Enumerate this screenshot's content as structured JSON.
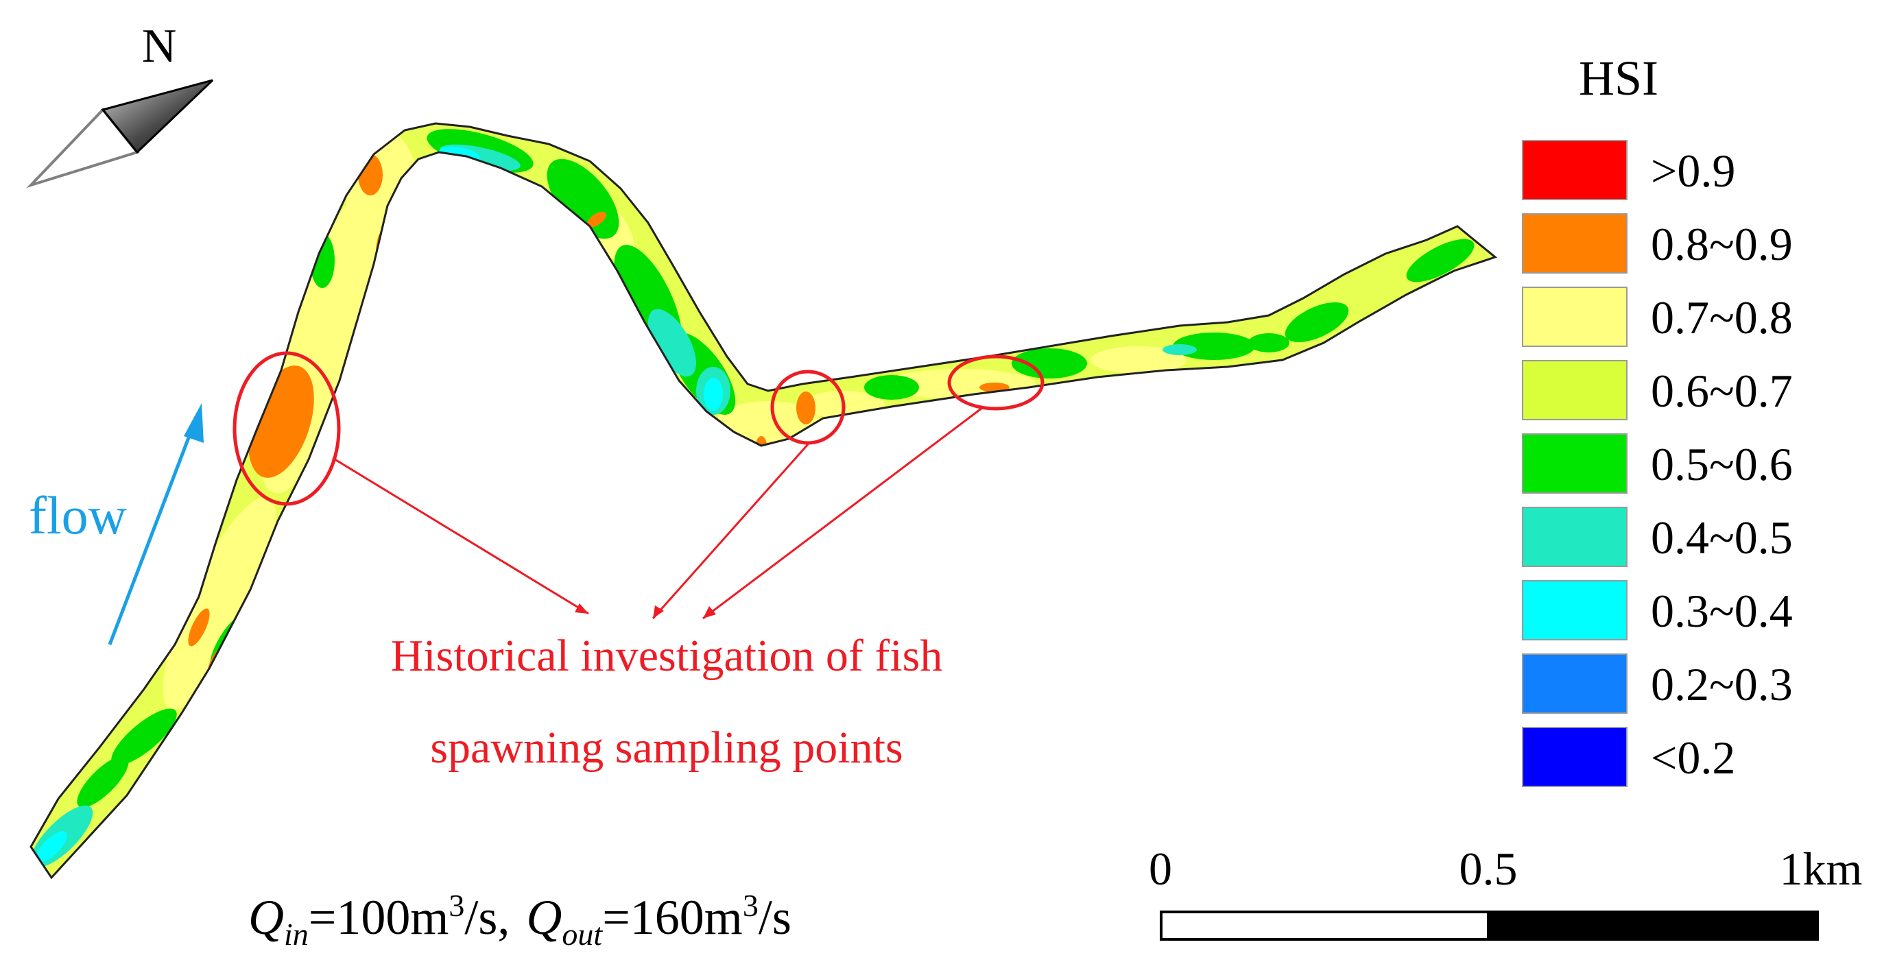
{
  "north_arrow": {
    "label": "N"
  },
  "flow": {
    "label": "flow",
    "color": "#1aa0e6"
  },
  "annotation": {
    "line1": "Historical investigation of fish",
    "line2": "spawning sampling points",
    "color": "#ee1c24"
  },
  "formula": {
    "q_in_symbol": "Q",
    "q_in_sub": "in",
    "q_in_value": "=100m",
    "q_in_sup": "3",
    "q_in_unit": "/s,",
    "q_out_symbol": "Q",
    "q_out_sub": "out",
    "q_out_value": "=160m",
    "q_out_sup": "3",
    "q_out_unit": "/s"
  },
  "legend": {
    "title": "HSI",
    "items": [
      {
        "label": ">0.9",
        "color": "#ff0000"
      },
      {
        "label": "0.8~0.9",
        "color": "#ff8000"
      },
      {
        "label": "0.7~0.8",
        "color": "#ffff80"
      },
      {
        "label": "0.6~0.7",
        "color": "#d8ff3a"
      },
      {
        "label": "0.5~0.6",
        "color": "#00e600"
      },
      {
        "label": "0.4~0.5",
        "color": "#20e8c0"
      },
      {
        "label": "0.3~0.4",
        "color": "#00ffff"
      },
      {
        "label": "0.2~0.3",
        "color": "#1080ff"
      },
      {
        "label": "<0.2",
        "color": "#0000ff"
      }
    ]
  },
  "scale_bar": {
    "tick_0": "0",
    "tick_mid": "0.5",
    "tick_end": "1km"
  }
}
